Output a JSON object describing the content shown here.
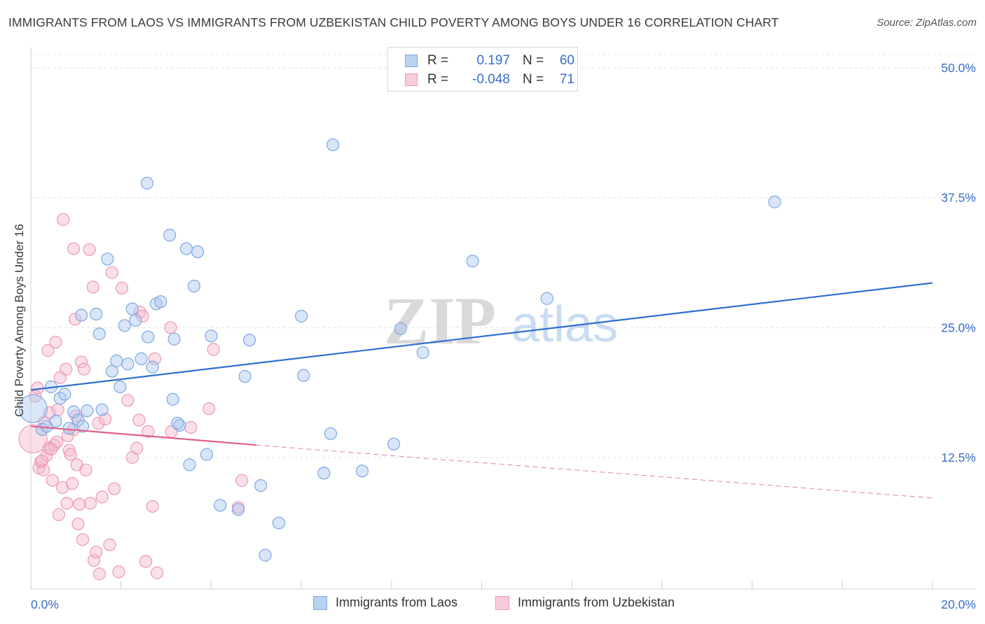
{
  "header": {
    "title": "IMMIGRANTS FROM LAOS VS IMMIGRANTS FROM UZBEKISTAN CHILD POVERTY AMONG BOYS UNDER 16 CORRELATION CHART",
    "source": "Source: ZipAtlas.com"
  },
  "watermark": {
    "zip": "ZIP",
    "atlas": "atlas"
  },
  "legend": {
    "r_label": "R =",
    "n_label": "N =",
    "laos": {
      "r": "0.197",
      "n": "60"
    },
    "uzbekistan": {
      "r": "-0.048",
      "n": "71"
    }
  },
  "colors": {
    "laos_fill": "#a9c8f0",
    "laos_stroke": "#7ea8e0",
    "laos_line": "#2e6fd0",
    "uzbek_fill": "#f5b8cb",
    "uzbek_stroke": "#ec9ab4",
    "uzbek_line": "#e0608c",
    "axis_text": "#3b6ec9"
  },
  "chart_data": {
    "type": "scatter",
    "title": "IMMIGRANTS FROM LAOS VS IMMIGRANTS FROM UZBEKISTAN CHILD POVERTY AMONG BOYS UNDER 16 CORRELATION CHART",
    "xlabel": "",
    "ylabel": "Child Poverty Among Boys Under 16",
    "xlim": [
      0,
      20
    ],
    "ylim": [
      0,
      52
    ],
    "x_tick_labels": [
      "0.0%",
      "20.0%"
    ],
    "y_ticks": [
      12.5,
      25.0,
      37.5,
      50.0
    ],
    "y_tick_labels": [
      "12.5%",
      "25.0%",
      "37.5%",
      "50.0%"
    ],
    "grid": true,
    "legend_position": "top-center",
    "series": [
      {
        "name": "Immigrants from Laos",
        "trend": {
          "x": [
            0.0,
            20.0
          ],
          "y": [
            19.0,
            29.3
          ],
          "style": "solid"
        },
        "points": [
          {
            "x": 0.05,
            "y": 17.2,
            "big": true
          },
          {
            "x": 0.25,
            "y": 15.2
          },
          {
            "x": 0.35,
            "y": 15.5
          },
          {
            "x": 0.45,
            "y": 19.3
          },
          {
            "x": 0.55,
            "y": 16.0
          },
          {
            "x": 0.65,
            "y": 18.2
          },
          {
            "x": 0.75,
            "y": 18.6
          },
          {
            "x": 0.85,
            "y": 15.3
          },
          {
            "x": 0.95,
            "y": 16.9
          },
          {
            "x": 1.05,
            "y": 16.1
          },
          {
            "x": 1.15,
            "y": 15.5
          },
          {
            "x": 1.25,
            "y": 17.0
          },
          {
            "x": 1.12,
            "y": 26.2
          },
          {
            "x": 1.45,
            "y": 26.3
          },
          {
            "x": 1.52,
            "y": 24.4
          },
          {
            "x": 1.58,
            "y": 17.1
          },
          {
            "x": 1.7,
            "y": 31.6
          },
          {
            "x": 1.8,
            "y": 20.8
          },
          {
            "x": 1.9,
            "y": 21.8
          },
          {
            "x": 1.98,
            "y": 19.3
          },
          {
            "x": 2.08,
            "y": 25.2
          },
          {
            "x": 2.15,
            "y": 21.5
          },
          {
            "x": 2.25,
            "y": 26.8
          },
          {
            "x": 2.32,
            "y": 25.7
          },
          {
            "x": 2.45,
            "y": 22.0
          },
          {
            "x": 2.6,
            "y": 24.1
          },
          {
            "x": 2.7,
            "y": 21.2
          },
          {
            "x": 2.78,
            "y": 27.3
          },
          {
            "x": 2.88,
            "y": 27.5
          },
          {
            "x": 2.58,
            "y": 38.9
          },
          {
            "x": 3.08,
            "y": 33.9
          },
          {
            "x": 3.15,
            "y": 18.1
          },
          {
            "x": 3.3,
            "y": 15.6
          },
          {
            "x": 3.45,
            "y": 32.6
          },
          {
            "x": 3.7,
            "y": 32.3
          },
          {
            "x": 3.62,
            "y": 29.0
          },
          {
            "x": 3.18,
            "y": 23.9
          },
          {
            "x": 4.0,
            "y": 24.2
          },
          {
            "x": 3.9,
            "y": 12.8
          },
          {
            "x": 3.52,
            "y": 11.8
          },
          {
            "x": 4.2,
            "y": 7.9
          },
          {
            "x": 4.6,
            "y": 7.5
          },
          {
            "x": 4.75,
            "y": 20.3
          },
          {
            "x": 4.85,
            "y": 23.8
          },
          {
            "x": 5.1,
            "y": 9.8
          },
          {
            "x": 5.2,
            "y": 3.1
          },
          {
            "x": 5.5,
            "y": 6.2
          },
          {
            "x": 6.0,
            "y": 26.1
          },
          {
            "x": 6.05,
            "y": 20.4
          },
          {
            "x": 6.5,
            "y": 11.0
          },
          {
            "x": 6.65,
            "y": 14.8
          },
          {
            "x": 6.7,
            "y": 42.6
          },
          {
            "x": 7.35,
            "y": 11.2
          },
          {
            "x": 8.05,
            "y": 13.8
          },
          {
            "x": 8.2,
            "y": 24.9
          },
          {
            "x": 8.7,
            "y": 22.6
          },
          {
            "x": 9.8,
            "y": 31.4
          },
          {
            "x": 11.45,
            "y": 27.8
          },
          {
            "x": 16.5,
            "y": 37.1
          },
          {
            "x": 3.25,
            "y": 15.8
          }
        ]
      },
      {
        "name": "Immigrants from Uzbekistan",
        "trend": {
          "x": [
            0.0,
            5.0
          ],
          "y": [
            15.5,
            13.7
          ],
          "style": "solid",
          "extended": {
            "x": [
              5.0,
              20.0
            ],
            "y": [
              13.7,
              8.6
            ],
            "style": "dashed"
          }
        },
        "points": [
          {
            "x": 0.05,
            "y": 14.3,
            "big": true
          },
          {
            "x": 0.1,
            "y": 18.4
          },
          {
            "x": 0.15,
            "y": 19.2
          },
          {
            "x": 0.18,
            "y": 11.5
          },
          {
            "x": 0.22,
            "y": 12.1
          },
          {
            "x": 0.28,
            "y": 11.3
          },
          {
            "x": 0.3,
            "y": 15.9
          },
          {
            "x": 0.35,
            "y": 12.7
          },
          {
            "x": 0.4,
            "y": 13.4
          },
          {
            "x": 0.42,
            "y": 16.8
          },
          {
            "x": 0.38,
            "y": 22.8
          },
          {
            "x": 0.48,
            "y": 10.3
          },
          {
            "x": 0.52,
            "y": 13.7
          },
          {
            "x": 0.55,
            "y": 23.6
          },
          {
            "x": 0.58,
            "y": 14.0
          },
          {
            "x": 0.62,
            "y": 7.0
          },
          {
            "x": 0.65,
            "y": 20.2
          },
          {
            "x": 0.7,
            "y": 9.6
          },
          {
            "x": 0.72,
            "y": 35.4
          },
          {
            "x": 0.78,
            "y": 21.0
          },
          {
            "x": 0.8,
            "y": 8.1
          },
          {
            "x": 0.82,
            "y": 14.6
          },
          {
            "x": 0.85,
            "y": 13.2
          },
          {
            "x": 0.88,
            "y": 12.8
          },
          {
            "x": 0.92,
            "y": 10.0
          },
          {
            "x": 0.95,
            "y": 15.2
          },
          {
            "x": 0.98,
            "y": 25.8
          },
          {
            "x": 1.0,
            "y": 16.5
          },
          {
            "x": 0.95,
            "y": 32.6
          },
          {
            "x": 1.02,
            "y": 11.8
          },
          {
            "x": 1.05,
            "y": 6.1
          },
          {
            "x": 1.08,
            "y": 8.0
          },
          {
            "x": 1.12,
            "y": 21.7
          },
          {
            "x": 1.15,
            "y": 4.6
          },
          {
            "x": 1.18,
            "y": 21.0
          },
          {
            "x": 1.22,
            "y": 11.3
          },
          {
            "x": 1.3,
            "y": 32.5
          },
          {
            "x": 1.32,
            "y": 8.1
          },
          {
            "x": 1.38,
            "y": 28.9
          },
          {
            "x": 1.4,
            "y": 2.6
          },
          {
            "x": 1.45,
            "y": 3.4
          },
          {
            "x": 1.5,
            "y": 15.8
          },
          {
            "x": 1.52,
            "y": 1.3
          },
          {
            "x": 1.58,
            "y": 8.7
          },
          {
            "x": 1.65,
            "y": 16.2
          },
          {
            "x": 1.75,
            "y": 4.1
          },
          {
            "x": 1.8,
            "y": 30.3
          },
          {
            "x": 1.85,
            "y": 9.5
          },
          {
            "x": 1.95,
            "y": 1.5
          },
          {
            "x": 2.02,
            "y": 28.8
          },
          {
            "x": 2.15,
            "y": 18.0
          },
          {
            "x": 2.25,
            "y": 12.5
          },
          {
            "x": 2.35,
            "y": 13.4
          },
          {
            "x": 2.4,
            "y": 16.1
          },
          {
            "x": 2.42,
            "y": 26.5
          },
          {
            "x": 2.48,
            "y": 26.1
          },
          {
            "x": 2.55,
            "y": 2.5
          },
          {
            "x": 2.6,
            "y": 15.0
          },
          {
            "x": 2.7,
            "y": 7.8
          },
          {
            "x": 2.75,
            "y": 22.0
          },
          {
            "x": 2.8,
            "y": 1.4
          },
          {
            "x": 3.1,
            "y": 25.0
          },
          {
            "x": 3.12,
            "y": 15.0
          },
          {
            "x": 3.55,
            "y": 15.4
          },
          {
            "x": 3.95,
            "y": 17.2
          },
          {
            "x": 4.05,
            "y": 22.9
          },
          {
            "x": 4.6,
            "y": 7.7
          },
          {
            "x": 4.68,
            "y": 10.3
          },
          {
            "x": 0.25,
            "y": 12.2
          },
          {
            "x": 0.45,
            "y": 13.3
          },
          {
            "x": 0.6,
            "y": 17.1
          }
        ]
      }
    ]
  },
  "bottom_legend": {
    "laos_label": "Immigrants from Laos",
    "uzbekistan_label": "Immigrants from Uzbekistan"
  }
}
